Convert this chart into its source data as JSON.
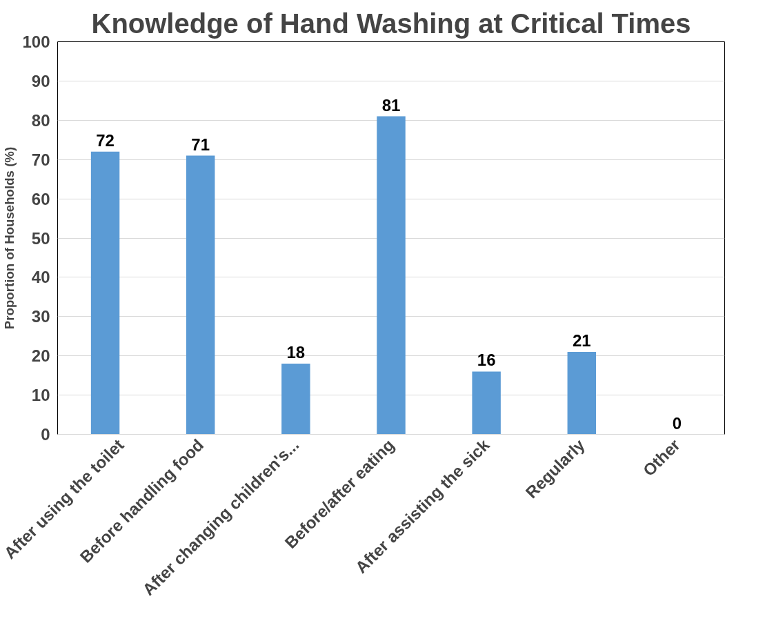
{
  "chart_data": {
    "type": "bar",
    "title": "Knowledge of Hand Washing at Critical Times",
    "ylabel": "Proportion of Households (%)",
    "categories": [
      "After using the toilet",
      "Before handling food",
      "After changing children's...",
      "Before/after eating",
      "After assisting the sick",
      "Regularly",
      "Other"
    ],
    "values": [
      72,
      71,
      18,
      81,
      16,
      21,
      0
    ],
    "color": "#5b9bd5",
    "ylim": [
      0,
      100
    ],
    "yticks": [
      0,
      10,
      20,
      30,
      40,
      50,
      60,
      70,
      80,
      90,
      100
    ],
    "grid": "y",
    "data_labels": true
  }
}
